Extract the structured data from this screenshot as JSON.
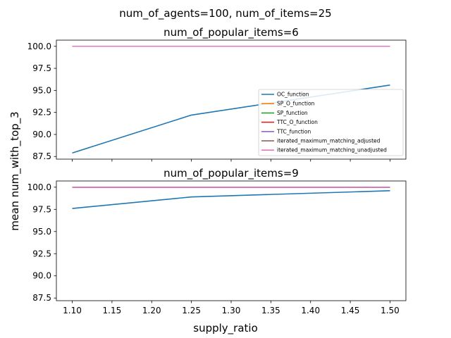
{
  "figure": {
    "suptitle": "num_of_agents=100, num_of_items=25",
    "shared_xlabel": "supply_ratio",
    "shared_ylabel": "mean num_with_top_3"
  },
  "series_styles": [
    {
      "name": "OC_function",
      "color": "#1f77b4"
    },
    {
      "name": "SP_O_function",
      "color": "#ff7f0e"
    },
    {
      "name": "SP_function",
      "color": "#2ca02c"
    },
    {
      "name": "TTC_O_function",
      "color": "#d62728"
    },
    {
      "name": "TTC_function",
      "color": "#9467bd"
    },
    {
      "name": "iterated_maximum_matching_adjusted",
      "color": "#8c564b"
    },
    {
      "name": "iterated_maximum_matching_unadjusted",
      "color": "#e377c2"
    }
  ],
  "chart_data": [
    {
      "type": "line",
      "title": "num_of_popular_items=6",
      "x": [
        1.1,
        1.25,
        1.5
      ],
      "xlim": [
        1.08,
        1.52
      ],
      "ylim": [
        87.2,
        100.7
      ],
      "xticks": [
        1.1,
        1.15,
        1.2,
        1.25,
        1.3,
        1.35,
        1.4,
        1.45,
        1.5
      ],
      "xtick_labels": [],
      "yticks": [
        87.5,
        90.0,
        92.5,
        95.0,
        97.5,
        100.0
      ],
      "ytick_labels": [
        "87.5",
        "90.0",
        "92.5",
        "95.0",
        "97.5",
        "100.0"
      ],
      "legend": "lower-right",
      "series": [
        {
          "name": "OC_function",
          "values": [
            87.9,
            92.2,
            95.6
          ]
        },
        {
          "name": "SP_O_function",
          "values": [
            100,
            100,
            100
          ]
        },
        {
          "name": "SP_function",
          "values": [
            100,
            100,
            100
          ]
        },
        {
          "name": "TTC_O_function",
          "values": [
            100,
            100,
            100
          ]
        },
        {
          "name": "TTC_function",
          "values": [
            100,
            100,
            100
          ]
        },
        {
          "name": "iterated_maximum_matching_adjusted",
          "values": [
            100,
            100,
            100
          ]
        },
        {
          "name": "iterated_maximum_matching_unadjusted",
          "values": [
            100,
            100,
            100
          ]
        }
      ]
    },
    {
      "type": "line",
      "title": "num_of_popular_items=9",
      "x": [
        1.1,
        1.25,
        1.5
      ],
      "xlim": [
        1.08,
        1.52
      ],
      "ylim": [
        87.2,
        100.7
      ],
      "xticks": [
        1.1,
        1.15,
        1.2,
        1.25,
        1.3,
        1.35,
        1.4,
        1.45,
        1.5
      ],
      "xtick_labels": [
        "1.10",
        "1.15",
        "1.20",
        "1.25",
        "1.30",
        "1.35",
        "1.40",
        "1.45",
        "1.50"
      ],
      "yticks": [
        87.5,
        90.0,
        92.5,
        95.0,
        97.5,
        100.0
      ],
      "ytick_labels": [
        "87.5",
        "90.0",
        "92.5",
        "95.0",
        "97.5",
        "100.0"
      ],
      "legend": "none",
      "series": [
        {
          "name": "OC_function",
          "values": [
            97.6,
            98.9,
            99.6
          ]
        },
        {
          "name": "SP_O_function",
          "values": [
            100,
            100,
            100
          ]
        },
        {
          "name": "SP_function",
          "values": [
            100,
            100,
            100
          ]
        },
        {
          "name": "TTC_O_function",
          "values": [
            100,
            100,
            100
          ]
        },
        {
          "name": "TTC_function",
          "values": [
            100,
            100,
            100
          ]
        },
        {
          "name": "iterated_maximum_matching_adjusted",
          "values": [
            100,
            100,
            100
          ]
        },
        {
          "name": "iterated_maximum_matching_unadjusted",
          "values": [
            100,
            100,
            100
          ]
        }
      ]
    }
  ]
}
